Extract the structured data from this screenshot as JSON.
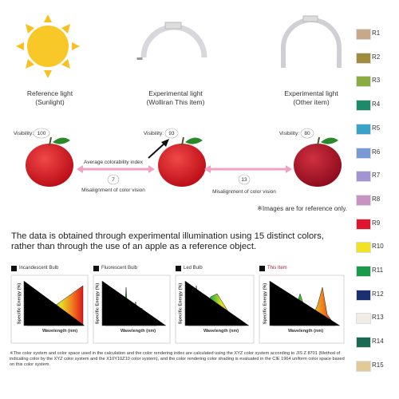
{
  "lights": [
    {
      "title": "Reference light",
      "subtitle": "(Sunlight)"
    },
    {
      "title": "Experimental light",
      "subtitle": "(Wolliran This item)"
    },
    {
      "title": "Experimental light",
      "subtitle": "(Other item)"
    }
  ],
  "visibility": {
    "label": "Visibility:",
    "values": [
      100,
      93,
      80
    ]
  },
  "comparisons": [
    {
      "title": "Average colorability index",
      "value": 7,
      "caption": "Misalignment of color vision"
    },
    {
      "value": 13,
      "caption": "Misalignment of color vision"
    }
  ],
  "note": "※Images are for reference only.",
  "headline": "The data is obtained through experimental illumination using 15 distinct colors, rather than through the use of an apple as a reference object.",
  "spectra": {
    "panels": [
      "Incandescent Bulb",
      "Fluorescent Bulb",
      "Led Bulb",
      "This Item"
    ],
    "y_label": "Specific Energy (%)",
    "x_label": "Wavelength (nm)"
  },
  "footnote": "※The color system and color space used in the calculation and the color rendering index are calculated using the XYZ color system according to JIS Z 8701 (Method of indicating color by the XYZ color system and the X10Y10Z10 color system), and the color rendering color shading is evaluated in the CIE 1964 uniform color space based on this color system.",
  "swatches": [
    {
      "label": "R1",
      "color": "#c8a888"
    },
    {
      "label": "R2",
      "color": "#a08c3c"
    },
    {
      "label": "R3",
      "color": "#8aac40"
    },
    {
      "label": "R4",
      "color": "#1e8a68"
    },
    {
      "label": "R5",
      "color": "#38a2c8"
    },
    {
      "label": "R6",
      "color": "#789ad6"
    },
    {
      "label": "R7",
      "color": "#a293d2"
    },
    {
      "label": "R8",
      "color": "#c892c2"
    },
    {
      "label": "R9",
      "color": "#e0142c"
    },
    {
      "label": "R10",
      "color": "#f2e224"
    },
    {
      "label": "R11",
      "color": "#1c9a4c"
    },
    {
      "label": "R12",
      "color": "#1a3070"
    },
    {
      "label": "R13",
      "color": "#f0ece4"
    },
    {
      "label": "R14",
      "color": "#1a6a52"
    },
    {
      "label": "R15",
      "color": "#e2ca94"
    }
  ]
}
